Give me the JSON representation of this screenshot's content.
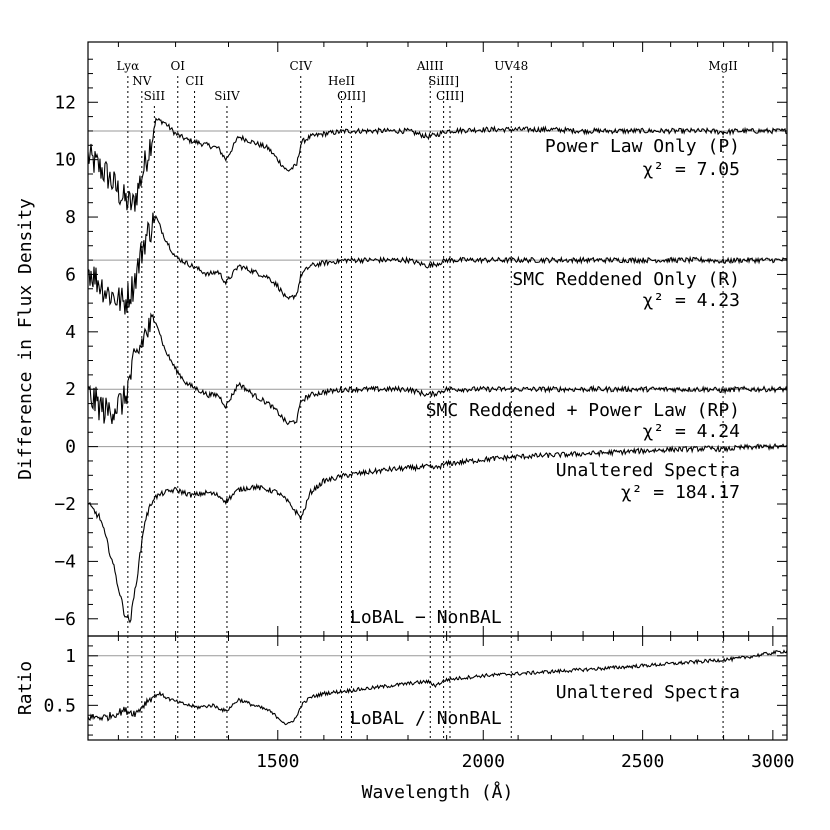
{
  "chart_data": [
    {
      "type": "line",
      "panel": "top",
      "ylabel": "Difference in Flux Density",
      "xlim": [
        1150,
        3060
      ],
      "ylim": [
        -6.6,
        14.1
      ],
      "yticks": [
        -6,
        -4,
        -2,
        0,
        2,
        4,
        6,
        8,
        10,
        12
      ],
      "corner_label": "LoBAL − NonBAL",
      "series": [
        {
          "name": "Power Law Only (P)",
          "chi2_label": "χ² = 7.05",
          "offset": 11,
          "x": [
            1150,
            1180,
            1210,
            1225,
            1245,
            1265,
            1280,
            1300,
            1320,
            1340,
            1360,
            1380,
            1395,
            1420,
            1450,
            1480,
            1500,
            1520,
            1540,
            1550,
            1570,
            1600,
            1650,
            1700,
            1750,
            1800,
            1850,
            1870,
            1900,
            2000,
            2100,
            2200,
            2300,
            2400,
            2500,
            2600,
            2700,
            2750,
            2800,
            2850,
            2900,
            3000,
            3060
          ],
          "y": [
            10.1,
            9.5,
            8.6,
            8.4,
            9.8,
            11.4,
            11.3,
            10.9,
            10.7,
            10.6,
            10.5,
            10.4,
            10.0,
            10.8,
            10.6,
            10.4,
            10.0,
            9.6,
            9.8,
            10.6,
            10.8,
            10.9,
            11.0,
            11.0,
            11.0,
            11.0,
            10.8,
            10.85,
            11.0,
            11.05,
            11.05,
            11.05,
            11.0,
            11.0,
            11.0,
            11.0,
            11.0,
            11.0,
            10.95,
            11.0,
            11.0,
            11.0,
            11.0
          ]
        },
        {
          "name": "SMC Reddened Only (R)",
          "chi2_label": "χ² = 4.23",
          "offset": 6.5,
          "x": [
            1150,
            1180,
            1210,
            1225,
            1245,
            1265,
            1280,
            1300,
            1320,
            1340,
            1360,
            1380,
            1395,
            1420,
            1450,
            1480,
            1500,
            1520,
            1540,
            1550,
            1570,
            1600,
            1650,
            1700,
            1750,
            1800,
            1850,
            1870,
            1900,
            2000,
            2100,
            2200,
            2300,
            2400,
            2500,
            2600,
            2700,
            2750,
            2800,
            2850,
            2900,
            3000,
            3060
          ],
          "y": [
            6.2,
            5.4,
            5.0,
            5.6,
            7.2,
            8.0,
            7.3,
            6.6,
            6.4,
            6.2,
            6.0,
            6.1,
            5.7,
            6.3,
            6.1,
            5.9,
            5.6,
            5.1,
            5.3,
            6.0,
            6.3,
            6.4,
            6.5,
            6.5,
            6.5,
            6.5,
            6.3,
            6.35,
            6.5,
            6.5,
            6.5,
            6.5,
            6.5,
            6.5,
            6.5,
            6.5,
            6.5,
            6.5,
            6.45,
            6.5,
            6.5,
            6.5,
            6.5
          ]
        },
        {
          "name": "SMC Reddened + Power Law (RP)",
          "chi2_label": "χ² = 4.24",
          "offset": 2,
          "x": [
            1150,
            1180,
            1210,
            1225,
            1245,
            1265,
            1280,
            1300,
            1320,
            1340,
            1360,
            1380,
            1395,
            1420,
            1450,
            1480,
            1500,
            1520,
            1540,
            1550,
            1570,
            1600,
            1650,
            1700,
            1750,
            1800,
            1850,
            1870,
            1900,
            2000,
            2100,
            2200,
            2300,
            2400,
            2500,
            2600,
            2700,
            2750,
            2800,
            2850,
            2900,
            3000,
            3060
          ],
          "y": [
            1.8,
            1.2,
            1.6,
            2.8,
            3.9,
            4.4,
            3.4,
            2.7,
            2.2,
            2.0,
            1.8,
            1.8,
            1.4,
            2.2,
            1.8,
            1.5,
            1.2,
            0.8,
            0.9,
            1.6,
            1.8,
            1.9,
            2.0,
            2.0,
            2.0,
            2.0,
            1.8,
            1.85,
            2.0,
            2.0,
            2.0,
            2.0,
            2.0,
            2.0,
            2.0,
            2.0,
            2.0,
            2.0,
            1.95,
            2.0,
            2.0,
            2.0,
            2.0
          ]
        },
        {
          "name": "Unaltered Spectra",
          "chi2_label": "χ² = 184.17",
          "offset": 0,
          "x": [
            1150,
            1170,
            1190,
            1210,
            1220,
            1232,
            1245,
            1260,
            1280,
            1300,
            1330,
            1360,
            1380,
            1395,
            1420,
            1450,
            1480,
            1500,
            1520,
            1540,
            1550,
            1570,
            1600,
            1650,
            1700,
            1750,
            1800,
            1850,
            1870,
            1900,
            2000,
            2100,
            2200,
            2300,
            2400,
            2500,
            2600,
            2700,
            2750,
            2800,
            2850,
            2900,
            3000,
            3060
          ],
          "y": [
            -2.0,
            -2.5,
            -4.0,
            -5.8,
            -6.1,
            -4.5,
            -2.6,
            -1.8,
            -1.6,
            -1.5,
            -1.7,
            -1.6,
            -1.7,
            -1.9,
            -1.5,
            -1.4,
            -1.5,
            -1.6,
            -1.9,
            -2.3,
            -2.5,
            -1.6,
            -1.2,
            -1.0,
            -0.9,
            -0.8,
            -0.75,
            -0.7,
            -0.75,
            -0.6,
            -0.45,
            -0.35,
            -0.3,
            -0.25,
            -0.2,
            -0.15,
            -0.1,
            -0.08,
            -0.06,
            -0.1,
            -0.05,
            -0.02,
            0.0,
            0.0
          ]
        }
      ]
    },
    {
      "type": "line",
      "panel": "bottom",
      "ylabel": "Ratio",
      "xlabel": "Wavelength (Å)",
      "xlim": [
        1150,
        3060
      ],
      "ylim": [
        0.15,
        1.2
      ],
      "yticks": [
        0.5,
        1
      ],
      "ytick_labels": [
        "0.5",
        "1"
      ],
      "xticks": [
        1500,
        2000,
        2500,
        3000
      ],
      "reference_line": 1,
      "corner_label": "LoBAL / NonBAL",
      "series": [
        {
          "name": "Unaltered Spectra",
          "x": [
            1150,
            1180,
            1210,
            1230,
            1250,
            1270,
            1290,
            1310,
            1340,
            1370,
            1395,
            1420,
            1450,
            1480,
            1500,
            1520,
            1540,
            1550,
            1570,
            1600,
            1700,
            1800,
            1850,
            1870,
            1900,
            2000,
            2100,
            2200,
            2300,
            2400,
            2500,
            2600,
            2700,
            2800,
            2850,
            2900,
            3000,
            3060
          ],
          "y": [
            0.38,
            0.38,
            0.45,
            0.42,
            0.55,
            0.62,
            0.56,
            0.52,
            0.48,
            0.5,
            0.44,
            0.56,
            0.5,
            0.45,
            0.38,
            0.3,
            0.38,
            0.5,
            0.58,
            0.62,
            0.67,
            0.72,
            0.74,
            0.7,
            0.76,
            0.8,
            0.82,
            0.84,
            0.86,
            0.88,
            0.9,
            0.92,
            0.94,
            0.96,
            0.97,
            0.99,
            1.03,
            1.05
          ]
        }
      ]
    }
  ],
  "emission_lines": [
    {
      "label": "Lyα",
      "wavelength": 1216,
      "row": 0
    },
    {
      "label": "NV",
      "wavelength": 1240,
      "row": 1
    },
    {
      "label": "SiII",
      "wavelength": 1262,
      "row": 2
    },
    {
      "label": "OI",
      "wavelength": 1304,
      "row": 0
    },
    {
      "label": "CII",
      "wavelength": 1335,
      "row": 1
    },
    {
      "label": "SiIV",
      "wavelength": 1397,
      "row": 2
    },
    {
      "label": "CIV",
      "wavelength": 1549,
      "row": 0
    },
    {
      "label": "HeII",
      "wavelength": 1640,
      "row": 1
    },
    {
      "label": "OIII]",
      "wavelength": 1663,
      "row": 2
    },
    {
      "label": "AlIII",
      "wavelength": 1857,
      "row": 0
    },
    {
      "label": "SiIII]",
      "wavelength": 1892,
      "row": 1
    },
    {
      "label": "CIII]",
      "wavelength": 1909,
      "row": 2
    },
    {
      "label": "UV48",
      "wavelength": 2080,
      "row": 0
    },
    {
      "label": "MgII",
      "wavelength": 2798,
      "row": 0
    }
  ]
}
